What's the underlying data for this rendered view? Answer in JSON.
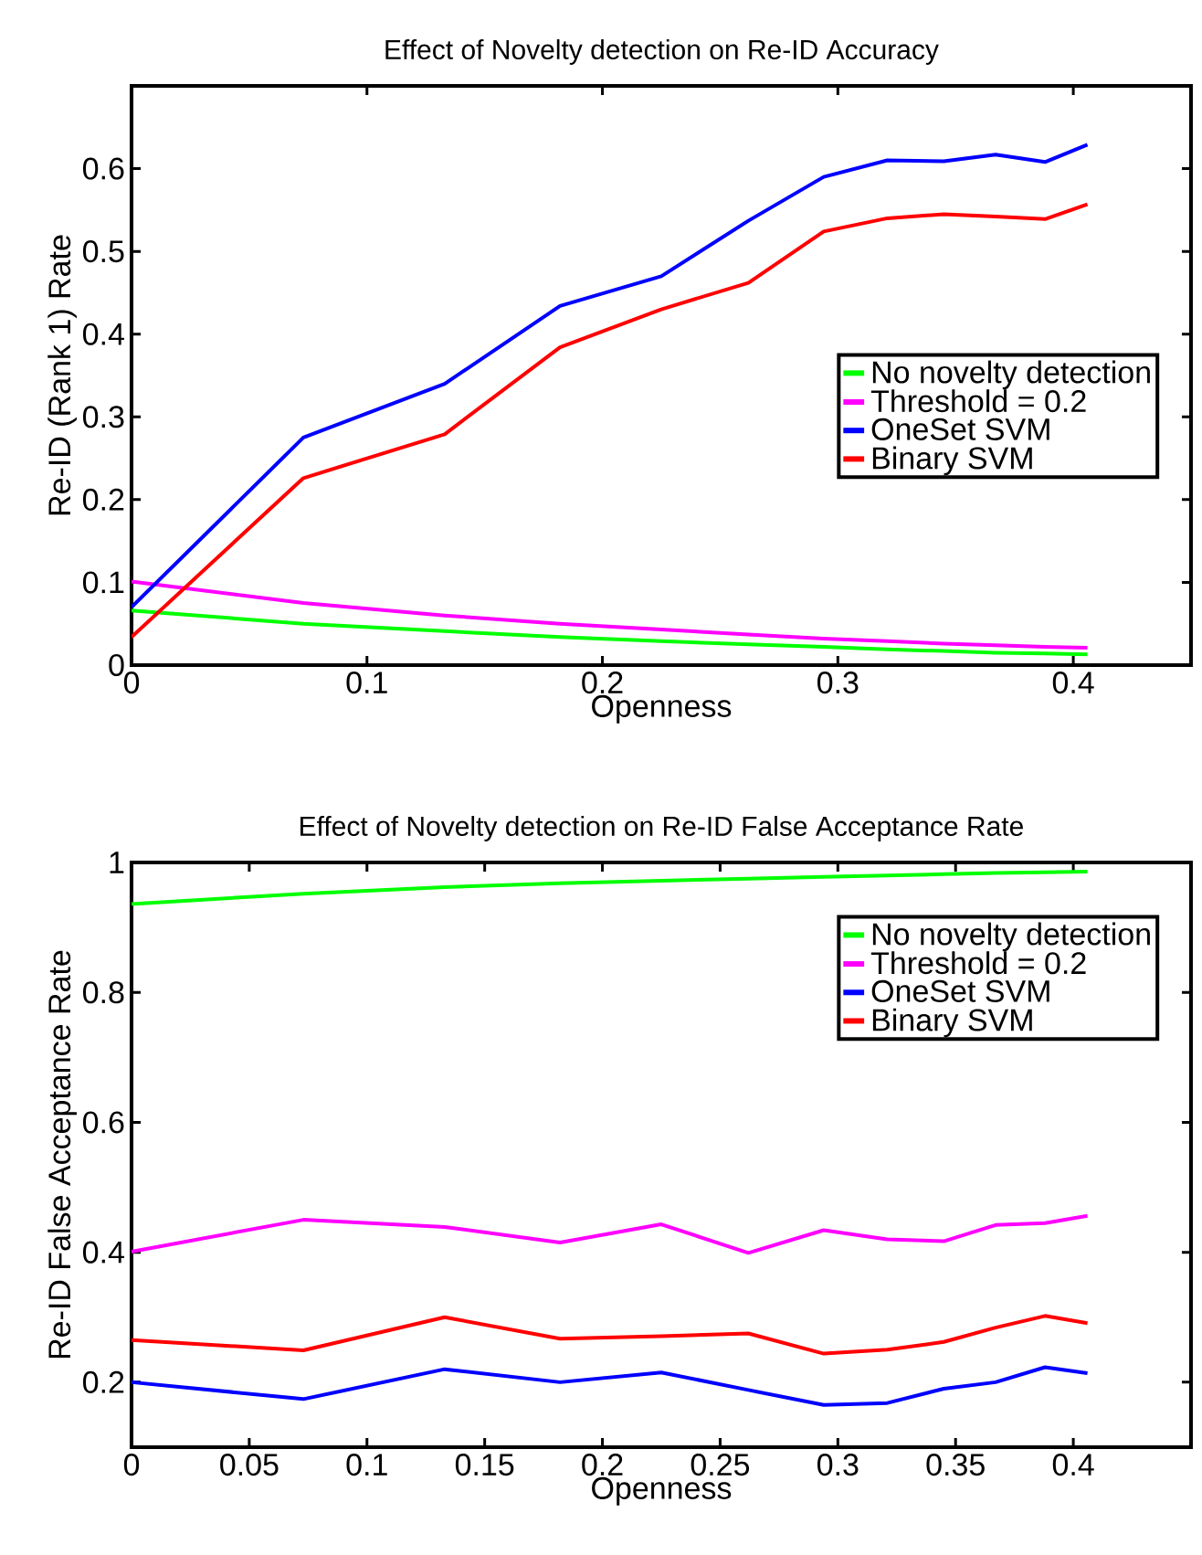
{
  "chart_data": [
    {
      "type": "line",
      "title": "Effect of Novelty detection on Re-ID Accuracy",
      "xlabel": "Openness",
      "ylabel": "Re-ID (Rank 1) Rate",
      "x": [
        0,
        0.073,
        0.133,
        0.182,
        0.225,
        0.262,
        0.294,
        0.321,
        0.345,
        0.367,
        0.388,
        0.406
      ],
      "series": [
        {
          "name": "No novelty detection",
          "color": "#00ff00",
          "values": [
            0.066,
            0.05,
            0.041,
            0.034,
            0.029,
            0.025,
            0.022,
            0.019,
            0.017,
            0.015,
            0.014,
            0.013
          ]
        },
        {
          "name": "Threshold = 0.2",
          "color": "#ff00ff",
          "values": [
            0.101,
            0.075,
            0.06,
            0.05,
            0.043,
            0.037,
            0.032,
            0.029,
            0.026,
            0.024,
            0.022,
            0.021
          ]
        },
        {
          "name": "OneSet SVM",
          "color": "#0000ff",
          "values": [
            0.07,
            0.275,
            0.34,
            0.434,
            0.47,
            0.537,
            0.59,
            0.61,
            0.609,
            0.617,
            0.608,
            0.629
          ]
        },
        {
          "name": "Binary SVM",
          "color": "#ff0000",
          "values": [
            0.034,
            0.226,
            0.279,
            0.384,
            0.43,
            0.462,
            0.524,
            0.54,
            0.545,
            0.542,
            0.539,
            0.557
          ]
        }
      ],
      "xlim": [
        0,
        0.45
      ],
      "ylim": [
        0,
        0.7
      ],
      "xticks": [
        0,
        0.1,
        0.2,
        0.3,
        0.4
      ],
      "yticks": [
        0,
        0.1,
        0.2,
        0.3,
        0.4,
        0.5,
        0.6
      ],
      "legend": "right",
      "line_style": "solid"
    },
    {
      "type": "line",
      "title": "Effect of Novelty detection on Re-ID False Acceptance Rate",
      "xlabel": "Openness",
      "ylabel": "Re-ID False Acceptance Rate",
      "x": [
        0,
        0.073,
        0.133,
        0.182,
        0.225,
        0.262,
        0.294,
        0.321,
        0.345,
        0.367,
        0.388,
        0.406
      ],
      "series": [
        {
          "name": "No novelty detection",
          "color": "#00ff00",
          "values": [
            0.936,
            0.952,
            0.962,
            0.968,
            0.972,
            0.975,
            0.978,
            0.98,
            0.982,
            0.984,
            0.985,
            0.986
          ]
        },
        {
          "name": "Threshold = 0.2",
          "color": "#ff00ff",
          "values": [
            0.401,
            0.45,
            0.439,
            0.415,
            0.443,
            0.399,
            0.434,
            0.42,
            0.417,
            0.442,
            0.445,
            0.456
          ]
        },
        {
          "name": "OneSet SVM",
          "color": "#0000ff",
          "values": [
            0.2,
            0.174,
            0.22,
            0.2,
            0.215,
            0.188,
            0.165,
            0.168,
            0.19,
            0.2,
            0.223,
            0.214
          ]
        },
        {
          "name": "Binary SVM",
          "color": "#ff0000",
          "values": [
            0.265,
            0.249,
            0.3,
            0.267,
            0.271,
            0.275,
            0.244,
            0.25,
            0.262,
            0.284,
            0.302,
            0.291
          ]
        }
      ],
      "xlim": [
        0,
        0.45
      ],
      "ylim": [
        0.1,
        1
      ],
      "xticks": [
        0,
        0.05,
        0.1,
        0.15,
        0.2,
        0.25,
        0.3,
        0.35,
        0.4
      ],
      "yticks": [
        0.2,
        0.4,
        0.6,
        0.8,
        1
      ],
      "legend": "top right",
      "line_style": "solid"
    }
  ]
}
